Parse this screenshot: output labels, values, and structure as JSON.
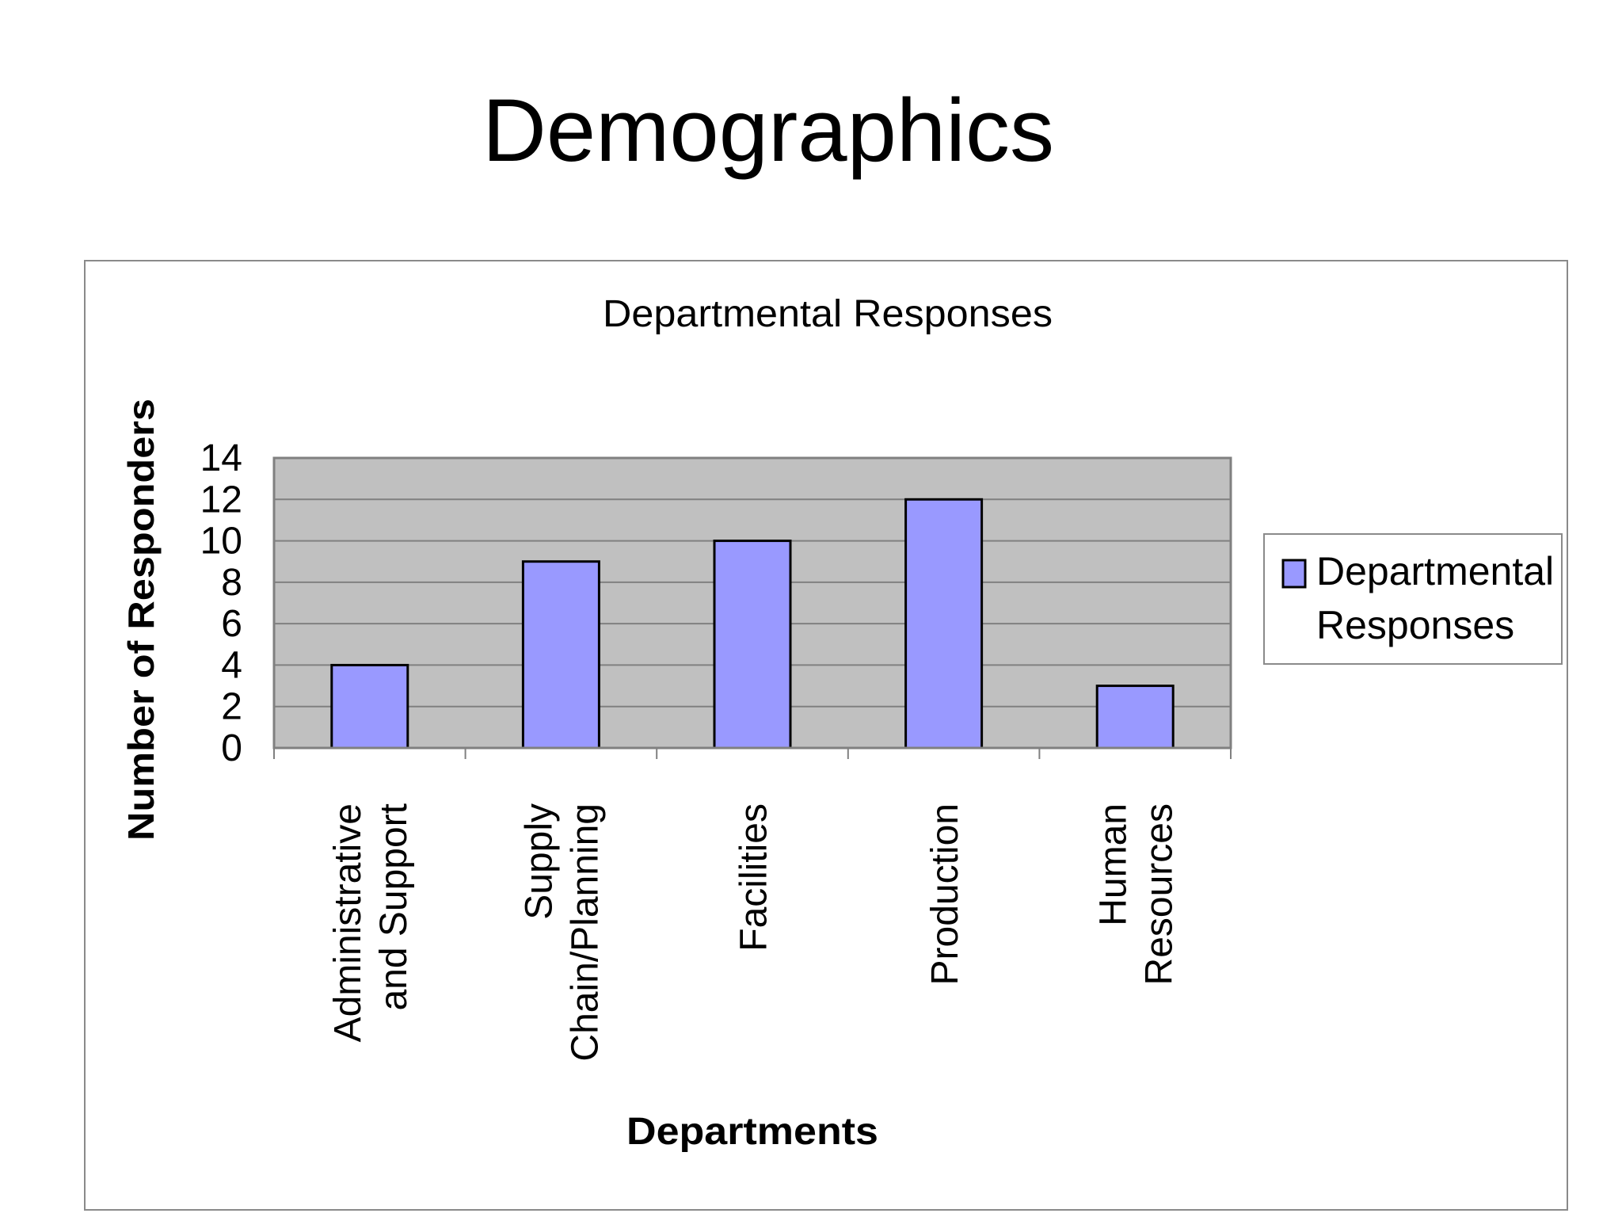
{
  "slide": {
    "title": "Demographics"
  },
  "colors": {
    "bar_fill": "#9999ff",
    "plot_background": "#c0c0c0",
    "gridline": "#808080",
    "bar_outline": "#000000"
  },
  "chart_data": {
    "type": "bar",
    "title": "Departmental Responses",
    "xlabel": "Departments",
    "ylabel": "Number of Responders",
    "categories": [
      "Administrative and Support",
      "Supply Chain/Planning",
      "Facilities",
      "Production",
      "Human Resources"
    ],
    "category_label_lines": [
      [
        "Administrative",
        "and Support"
      ],
      [
        "Supply",
        "Chain/Planning"
      ],
      [
        "Facilities"
      ],
      [
        "Production"
      ],
      [
        "Human",
        "Resources"
      ]
    ],
    "series": [
      {
        "name": "Departmental Responses",
        "legend_lines": [
          "Departmental",
          "Responses"
        ],
        "values": [
          4,
          9,
          10,
          12,
          3
        ]
      }
    ],
    "ylim": [
      0,
      14
    ],
    "yticks": [
      0,
      2,
      4,
      6,
      8,
      10,
      12,
      14
    ],
    "grid": true,
    "legend_position": "right"
  }
}
